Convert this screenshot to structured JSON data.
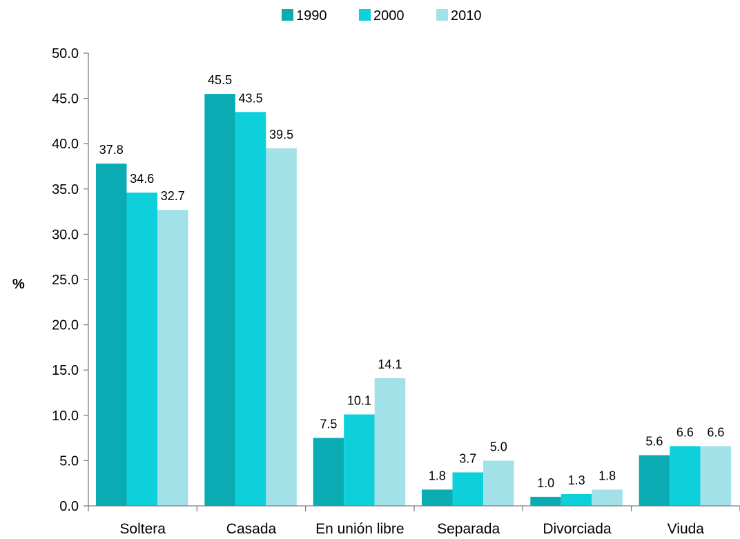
{
  "chart_data": {
    "type": "bar",
    "categories": [
      "Soltera",
      "Casada",
      "En unión libre",
      "Separada",
      "Divorciada",
      "Viuda"
    ],
    "series": [
      {
        "name": "1990",
        "values": [
          37.8,
          45.5,
          7.5,
          1.8,
          1.0,
          5.6
        ],
        "data_labels": [
          "37.8",
          "45.5",
          "7.5",
          "1.8",
          "1.0",
          "5.6"
        ]
      },
      {
        "name": "2000",
        "values": [
          34.6,
          43.5,
          10.1,
          3.7,
          1.3,
          6.6
        ],
        "data_labels": [
          "34.6",
          "43.5",
          "10.1",
          "3.7",
          "1.3",
          "6.6"
        ]
      },
      {
        "name": "2010",
        "values": [
          32.7,
          39.5,
          14.1,
          5.0,
          1.8,
          6.6
        ],
        "data_labels": [
          "32.7",
          "39.5",
          "14.1",
          "5.0",
          "1.8",
          "6.6"
        ]
      }
    ],
    "title": "",
    "xlabel": "",
    "ylabel": "%",
    "ylim": [
      0,
      50
    ],
    "yticks": [
      "0.0",
      "5.0",
      "10.0",
      "15.0",
      "20.0",
      "25.0",
      "30.0",
      "35.0",
      "40.0",
      "45.0",
      "50.0"
    ],
    "grid": false,
    "legend_position": "top-center",
    "colors": [
      "#0aabb3",
      "#0dd0da",
      "#a3e1e8"
    ]
  }
}
